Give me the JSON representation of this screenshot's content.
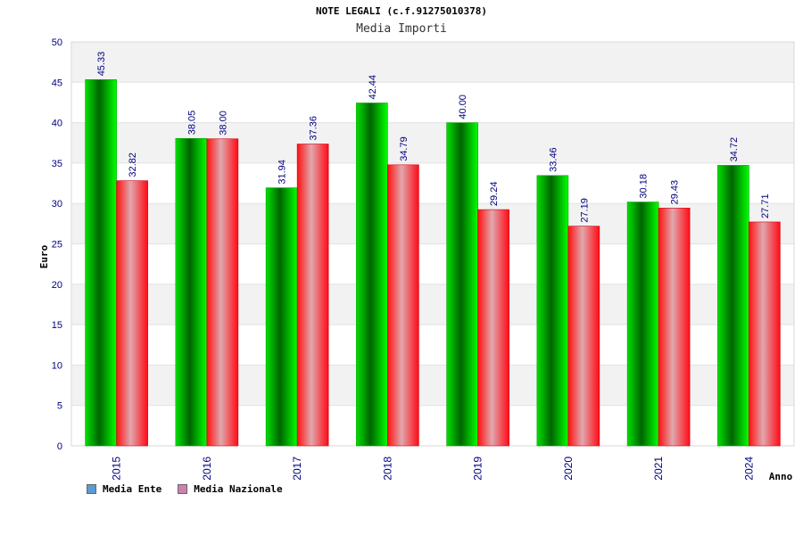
{
  "chart_data": {
    "type": "bar",
    "title": "NOTE LEGALI (c.f.91275010378)",
    "subtitle": "Media Importi",
    "xlabel": "Anno",
    "ylabel": "Euro",
    "categories": [
      "2015",
      "2016",
      "2017",
      "2018",
      "2019",
      "2020",
      "2021",
      "2024"
    ],
    "series": [
      {
        "name": "Media Ente",
        "values": [
          45.33,
          38.05,
          31.94,
          42.44,
          40.0,
          33.46,
          30.18,
          34.72
        ],
        "labels": [
          "45.33",
          "38.05",
          "31.94",
          "42.44",
          "40.00",
          "33.46",
          "30.18",
          "34.72"
        ],
        "color": "#00b000"
      },
      {
        "name": "Media Nazionale",
        "values": [
          32.82,
          38.0,
          37.36,
          34.79,
          29.24,
          27.19,
          29.43,
          27.71
        ],
        "labels": [
          "32.82",
          "38.00",
          "37.36",
          "34.79",
          "29.24",
          "27.19",
          "29.43",
          "27.71"
        ],
        "color": "#e8141e"
      }
    ],
    "ylim": [
      0,
      50
    ],
    "yticks": [
      "0",
      "5",
      "10",
      "15",
      "20",
      "25",
      "30",
      "35",
      "40",
      "45",
      "50"
    ],
    "grid": true,
    "legend_position": "bottom-left",
    "legend": [
      {
        "label": "Media Ente",
        "color": "#5b9bd5"
      },
      {
        "label": "Media Nazionale",
        "color": "#d080b0"
      }
    ]
  }
}
